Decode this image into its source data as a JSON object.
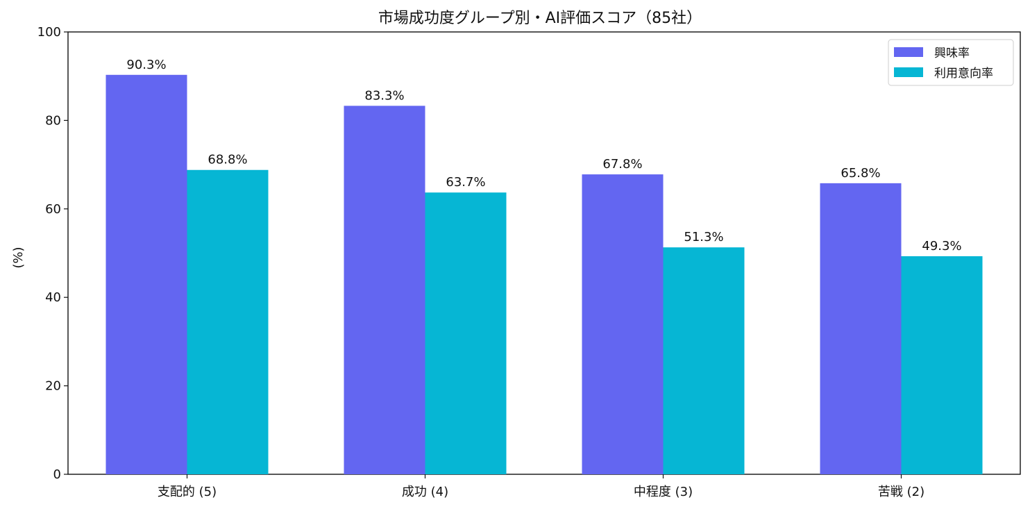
{
  "chart_data": {
    "type": "bar",
    "title": "市場成功度グループ別・AI評価スコア（85社）",
    "xlabel": "",
    "ylabel": "(%)",
    "ylim": [
      0,
      100
    ],
    "yticks": [
      0,
      20,
      40,
      60,
      80,
      100
    ],
    "categories": [
      "支配的 (5)",
      "成功 (4)",
      "中程度 (3)",
      "苦戦 (2)"
    ],
    "series": [
      {
        "name": "興味率",
        "color": "#6366f1",
        "values": [
          90.3,
          83.3,
          67.8,
          65.8
        ],
        "labels": [
          "90.3%",
          "83.3%",
          "67.8%",
          "65.8%"
        ]
      },
      {
        "name": "利用意向率",
        "color": "#06b6d4",
        "values": [
          68.8,
          63.7,
          51.3,
          49.3
        ],
        "labels": [
          "68.8%",
          "63.7%",
          "51.3%",
          "49.3%"
        ]
      }
    ],
    "legend_position": "top-right",
    "grid": false
  }
}
